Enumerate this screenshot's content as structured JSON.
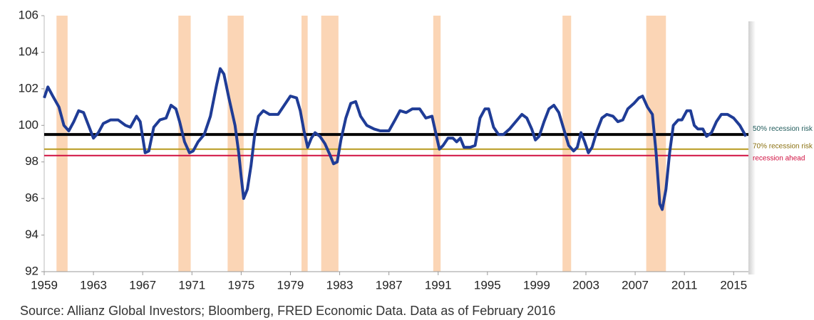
{
  "chart_data": {
    "type": "line",
    "source": "Source: Allianz Global Investors; Bloomberg, FRED Economic Data. Data as of February 2016",
    "xlim": [
      1959,
      2016.2
    ],
    "xticks": [
      1959,
      1963,
      1967,
      1971,
      1975,
      1979,
      1983,
      1987,
      1991,
      1995,
      1999,
      2003,
      2007,
      2011,
      2015
    ],
    "ylim": [
      92,
      106
    ],
    "yticks": [
      92,
      94,
      96,
      98,
      100,
      102,
      104,
      106
    ],
    "recession_color": "#fbd5b5",
    "recessions": [
      [
        1960.0,
        1960.9
      ],
      [
        1969.9,
        1970.9
      ],
      [
        1973.9,
        1975.2
      ],
      [
        1979.9,
        1980.4
      ],
      [
        1981.5,
        1982.9
      ],
      [
        1990.6,
        1991.2
      ],
      [
        2001.1,
        2001.8
      ],
      [
        2007.9,
        2009.5
      ]
    ],
    "reference_lines": [
      {
        "value": 99.5,
        "color": "#000000",
        "label": "50% recession risk",
        "label_color": "#1f5a5a"
      },
      {
        "value": 98.7,
        "color": "#b89a1e",
        "label": "70% recession risk",
        "label_color": "#8a7010"
      },
      {
        "value": 98.35,
        "color": "#d01040",
        "label": "recession ahead",
        "label_color": "#d01040"
      }
    ],
    "series": [
      {
        "color": "#1f3c96",
        "x": [
          1959.0,
          1959.3,
          1959.7,
          1960.2,
          1960.6,
          1961.0,
          1961.4,
          1961.8,
          1962.2,
          1962.6,
          1963.0,
          1963.4,
          1963.8,
          1964.4,
          1965.0,
          1965.6,
          1966.0,
          1966.5,
          1966.8,
          1967.2,
          1967.5,
          1967.9,
          1968.4,
          1968.9,
          1969.3,
          1969.7,
          1970.0,
          1970.4,
          1970.8,
          1971.1,
          1971.5,
          1972.0,
          1972.5,
          1973.0,
          1973.3,
          1973.6,
          1974.0,
          1974.5,
          1974.8,
          1975.0,
          1975.2,
          1975.5,
          1975.8,
          1976.1,
          1976.4,
          1976.8,
          1977.3,
          1978.0,
          1978.5,
          1979.0,
          1979.5,
          1979.8,
          1980.1,
          1980.4,
          1980.7,
          1981.0,
          1981.4,
          1981.8,
          1982.2,
          1982.5,
          1982.8,
          1983.1,
          1983.5,
          1983.9,
          1984.3,
          1984.7,
          1985.2,
          1985.8,
          1986.3,
          1987.0,
          1987.5,
          1987.9,
          1988.4,
          1988.9,
          1989.5,
          1990.0,
          1990.5,
          1990.8,
          1991.1,
          1991.4,
          1991.8,
          1992.2,
          1992.5,
          1992.8,
          1993.1,
          1993.6,
          1994.0,
          1994.4,
          1994.8,
          1995.1,
          1995.5,
          1995.9,
          1996.3,
          1996.8,
          1997.3,
          1997.8,
          1998.2,
          1998.6,
          1998.9,
          1999.2,
          1999.6,
          2000.0,
          2000.4,
          2000.8,
          2001.2,
          2001.6,
          2002.0,
          2002.3,
          2002.6,
          2002.9,
          2003.2,
          2003.5,
          2003.9,
          2004.3,
          2004.7,
          2005.2,
          2005.6,
          2006.0,
          2006.4,
          2006.9,
          2007.3,
          2007.6,
          2008.0,
          2008.4,
          2008.7,
          2009.0,
          2009.2,
          2009.5,
          2009.8,
          2010.1,
          2010.5,
          2010.8,
          2011.2,
          2011.5,
          2011.8,
          2012.1,
          2012.5,
          2012.8,
          2013.2,
          2013.6,
          2014.0,
          2014.5,
          2015.0,
          2015.5,
          2016.0
        ],
        "values": [
          101.5,
          102.1,
          101.6,
          101.0,
          100.0,
          99.7,
          100.2,
          100.8,
          100.7,
          100.0,
          99.3,
          99.6,
          100.1,
          100.3,
          100.3,
          100.0,
          99.9,
          100.5,
          100.2,
          98.5,
          98.6,
          99.9,
          100.3,
          100.4,
          101.1,
          100.9,
          100.2,
          99.1,
          98.5,
          98.6,
          99.1,
          99.5,
          100.5,
          102.2,
          103.1,
          102.8,
          101.5,
          100.0,
          98.5,
          97.2,
          96.0,
          96.5,
          97.8,
          99.5,
          100.5,
          100.8,
          100.6,
          100.6,
          101.1,
          101.6,
          101.5,
          100.8,
          99.7,
          98.8,
          99.3,
          99.6,
          99.4,
          99.0,
          98.4,
          97.9,
          98.0,
          99.2,
          100.4,
          101.2,
          101.3,
          100.5,
          100.0,
          99.8,
          99.7,
          99.7,
          100.3,
          100.8,
          100.7,
          100.9,
          100.9,
          100.4,
          100.5,
          99.6,
          98.7,
          98.9,
          99.3,
          99.3,
          99.1,
          99.3,
          98.8,
          98.8,
          98.9,
          100.4,
          100.9,
          100.9,
          99.9,
          99.5,
          99.5,
          99.8,
          100.2,
          100.6,
          100.4,
          99.8,
          99.2,
          99.4,
          100.2,
          100.9,
          101.1,
          100.7,
          99.8,
          98.9,
          98.6,
          98.8,
          99.6,
          99.1,
          98.5,
          98.8,
          99.7,
          100.4,
          100.6,
          100.5,
          100.2,
          100.3,
          100.9,
          101.2,
          101.5,
          101.6,
          101.0,
          100.6,
          98.5,
          95.7,
          95.4,
          96.5,
          98.5,
          100.0,
          100.3,
          100.3,
          100.8,
          100.8,
          100.0,
          99.8,
          99.8,
          99.4,
          99.6,
          100.2,
          100.6,
          100.6,
          100.4,
          100.0,
          99.4
        ]
      }
    ]
  }
}
